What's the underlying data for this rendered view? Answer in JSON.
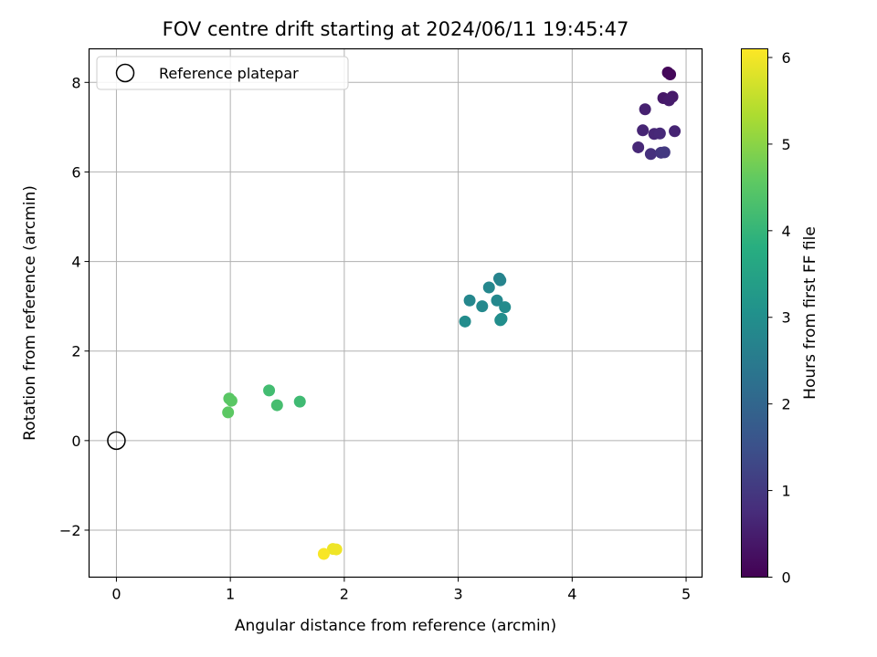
{
  "chart_data": {
    "type": "scatter",
    "title": "FOV centre drift starting at 2024/06/11 19:45:47",
    "xlabel": "Angular distance from reference (arcmin)",
    "ylabel": "Rotation from reference (arcmin)",
    "xlim": [
      -0.24,
      5.14
    ],
    "ylim": [
      -3.05,
      8.75
    ],
    "xticks": [
      0,
      1,
      2,
      3,
      4,
      5
    ],
    "xtick_labels": [
      "0",
      "1",
      "2",
      "3",
      "4",
      "5"
    ],
    "yticks": [
      -2,
      0,
      2,
      4,
      6,
      8
    ],
    "ytick_labels": [
      "−2",
      "0",
      "2",
      "4",
      "6",
      "8"
    ],
    "grid": true,
    "legend": {
      "placement": "upper-left",
      "entries": [
        {
          "label": "Reference platepar",
          "marker": "hollow-circle",
          "color": "#000000"
        }
      ]
    },
    "reference_point": {
      "x": 0,
      "y": 0
    },
    "colorbar": {
      "label": "Hours from first FF file",
      "range": [
        0,
        6.1
      ],
      "ticks": [
        0,
        1,
        2,
        3,
        4,
        5,
        6
      ],
      "tick_labels": [
        "0",
        "1",
        "2",
        "3",
        "4",
        "5",
        "6"
      ],
      "colormap": "viridis"
    },
    "points": [
      {
        "x": 4.84,
        "y": 8.22,
        "t": 0.1
      },
      {
        "x": 4.86,
        "y": 8.18,
        "t": 0.12
      },
      {
        "x": 4.8,
        "y": 7.65,
        "t": 0.4
      },
      {
        "x": 4.88,
        "y": 7.68,
        "t": 0.42
      },
      {
        "x": 4.85,
        "y": 7.6,
        "t": 0.45
      },
      {
        "x": 4.64,
        "y": 7.4,
        "t": 0.55
      },
      {
        "x": 4.62,
        "y": 6.93,
        "t": 0.62
      },
      {
        "x": 4.72,
        "y": 6.85,
        "t": 0.66
      },
      {
        "x": 4.77,
        "y": 6.86,
        "t": 0.7
      },
      {
        "x": 4.9,
        "y": 6.91,
        "t": 0.6
      },
      {
        "x": 4.58,
        "y": 6.55,
        "t": 0.68
      },
      {
        "x": 4.69,
        "y": 6.4,
        "t": 0.85
      },
      {
        "x": 4.78,
        "y": 6.43,
        "t": 0.95
      },
      {
        "x": 4.81,
        "y": 6.44,
        "t": 1.0
      },
      {
        "x": 3.36,
        "y": 3.62,
        "t": 2.7
      },
      {
        "x": 3.37,
        "y": 3.58,
        "t": 2.72
      },
      {
        "x": 3.27,
        "y": 3.42,
        "t": 2.8
      },
      {
        "x": 3.1,
        "y": 3.13,
        "t": 2.8
      },
      {
        "x": 3.34,
        "y": 3.13,
        "t": 2.82
      },
      {
        "x": 3.21,
        "y": 3.0,
        "t": 2.85
      },
      {
        "x": 3.41,
        "y": 2.98,
        "t": 2.9
      },
      {
        "x": 3.38,
        "y": 2.72,
        "t": 2.95
      },
      {
        "x": 3.37,
        "y": 2.69,
        "t": 2.97
      },
      {
        "x": 3.06,
        "y": 2.66,
        "t": 2.92
      },
      {
        "x": 1.34,
        "y": 1.12,
        "t": 4.2
      },
      {
        "x": 0.99,
        "y": 0.94,
        "t": 4.5
      },
      {
        "x": 1.01,
        "y": 0.89,
        "t": 4.52
      },
      {
        "x": 1.61,
        "y": 0.87,
        "t": 4.15
      },
      {
        "x": 1.41,
        "y": 0.79,
        "t": 4.25
      },
      {
        "x": 0.98,
        "y": 0.63,
        "t": 4.55
      },
      {
        "x": 1.9,
        "y": -2.42,
        "t": 5.95
      },
      {
        "x": 1.93,
        "y": -2.43,
        "t": 5.97
      },
      {
        "x": 1.82,
        "y": -2.53,
        "t": 6.05
      }
    ]
  }
}
